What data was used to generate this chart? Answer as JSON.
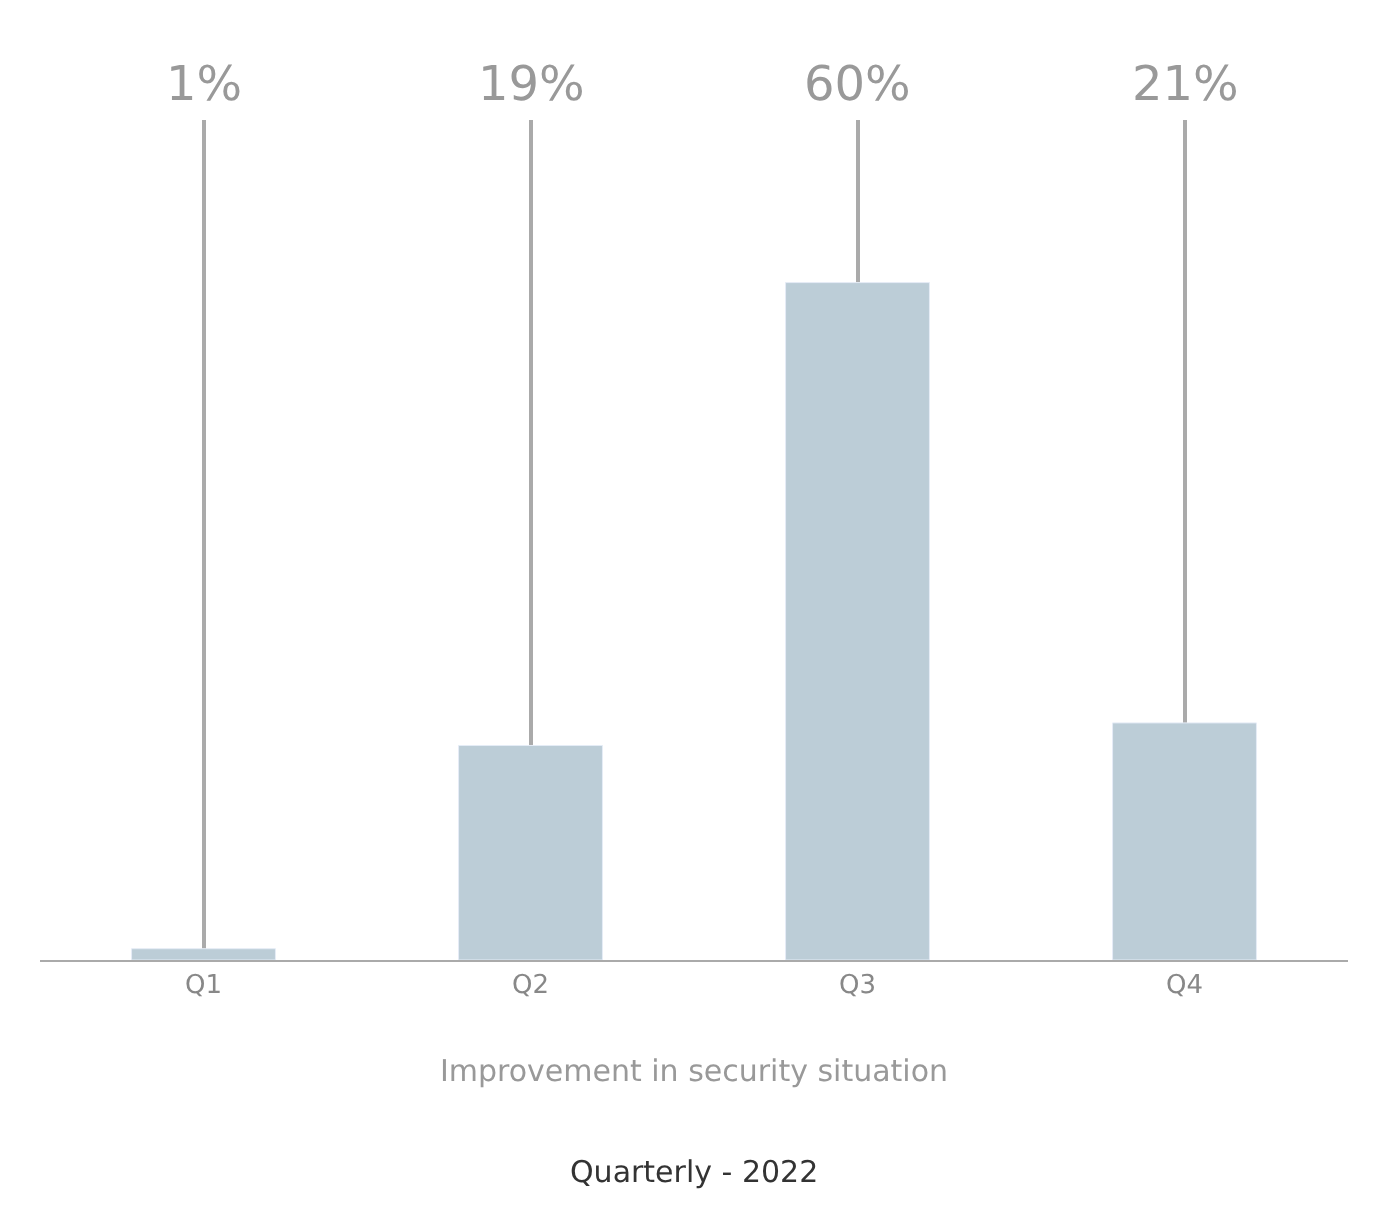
{
  "chart_data": {
    "type": "bar",
    "title": "Quarterly - 2022",
    "xlabel": "Improvement in security situation",
    "categories": [
      "Q1",
      "Q2",
      "Q3",
      "Q4"
    ],
    "values": [
      1,
      19,
      60,
      21
    ],
    "value_labels": [
      "1%",
      "19%",
      "60%",
      "21%"
    ],
    "color": "#bccdd7",
    "grid": "x"
  }
}
